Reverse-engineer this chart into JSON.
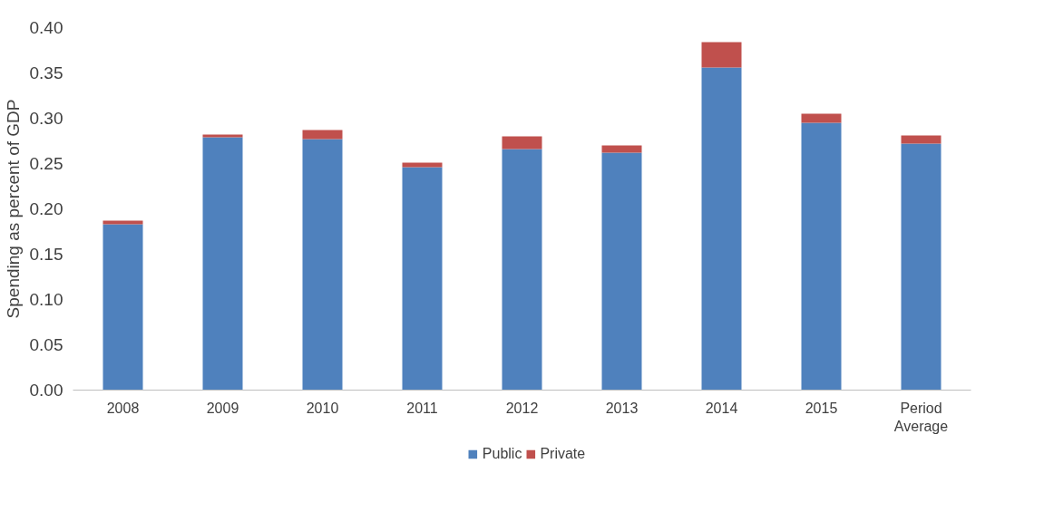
{
  "chart_data": {
    "type": "bar",
    "stacked": true,
    "ylabel": "Spending as percent of GDP",
    "categories": [
      "2008",
      "2009",
      "2010",
      "2011",
      "2012",
      "2013",
      "2014",
      "2015",
      "Period Average"
    ],
    "series": [
      {
        "name": "Public",
        "color": "#4f81bd",
        "values": [
          0.183,
          0.279,
          0.277,
          0.246,
          0.266,
          0.262,
          0.356,
          0.295,
          0.272
        ]
      },
      {
        "name": "Private",
        "color": "#c0504d",
        "values": [
          0.004,
          0.003,
          0.01,
          0.005,
          0.014,
          0.008,
          0.028,
          0.01,
          0.009
        ]
      }
    ],
    "ylim": [
      0,
      0.4
    ],
    "yticks": [
      {
        "value": 0,
        "label": "0.00"
      },
      {
        "value": 0.05,
        "label": "0.05"
      },
      {
        "value": 0.1,
        "label": "0.10"
      },
      {
        "value": 0.15,
        "label": "0.15"
      },
      {
        "value": 0.2,
        "label": "0.20"
      },
      {
        "value": 0.25,
        "label": "0.25"
      },
      {
        "value": 0.3,
        "label": "0.30"
      },
      {
        "value": 0.35,
        "label": "0.35"
      },
      {
        "value": 0.4,
        "label": "0.40"
      }
    ],
    "grid": false,
    "legend": "bottom"
  }
}
